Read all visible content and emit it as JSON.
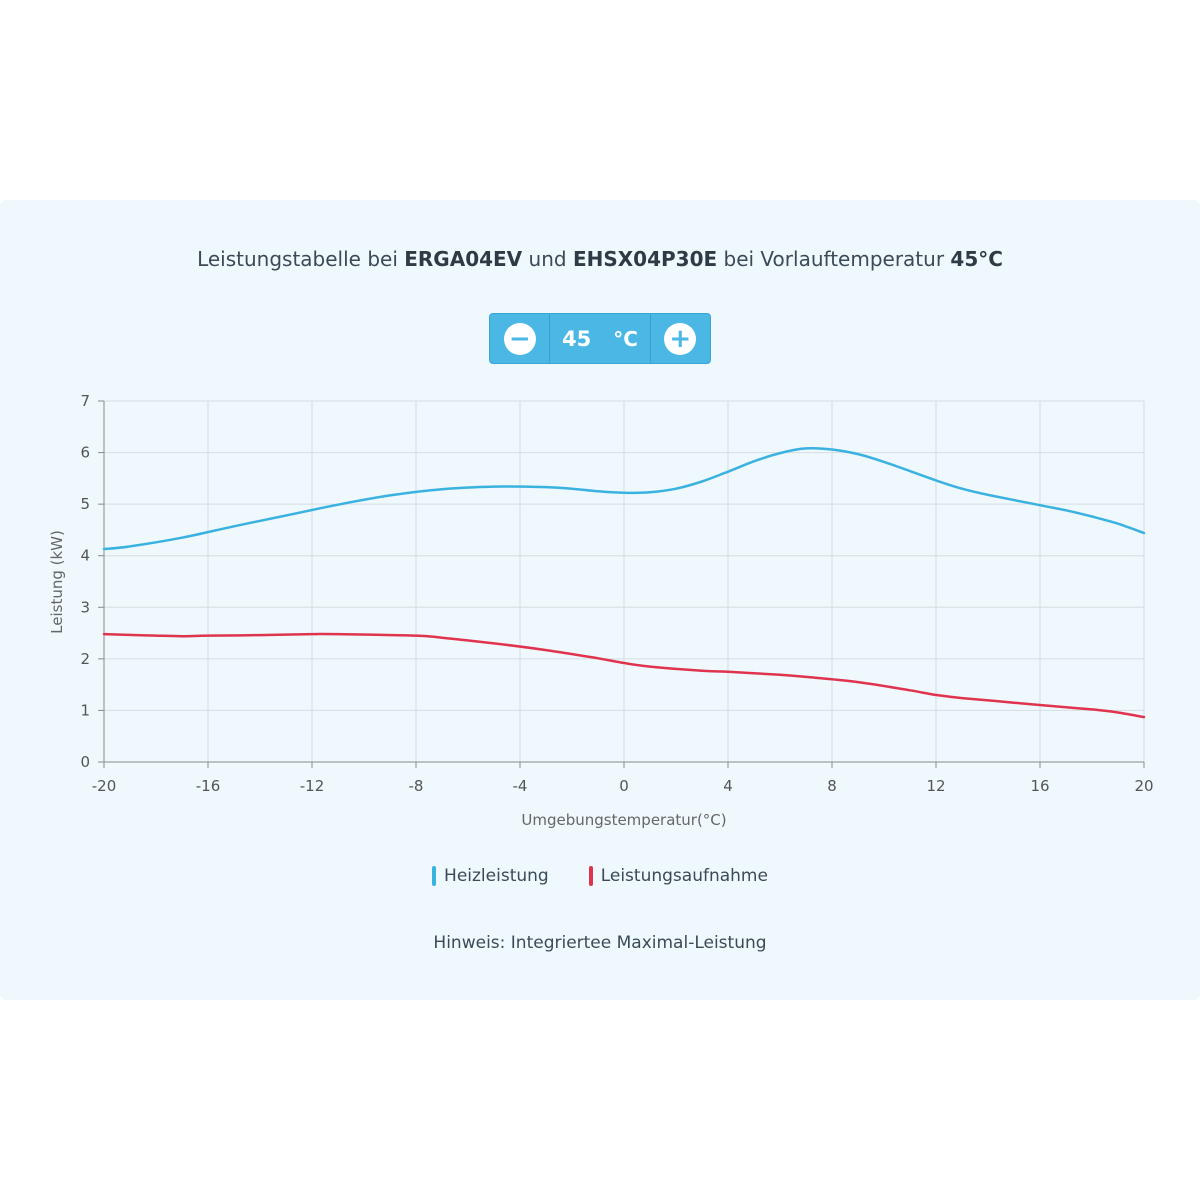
{
  "title": {
    "prefix": "Leistungstabelle bei ",
    "model1": "ERGA04EV",
    "mid": " und ",
    "model2": "EHSX04P30E",
    "mid2": " bei Vorlauftemperatur ",
    "temp": "45°C"
  },
  "stepper": {
    "minus_icon": "minus-icon",
    "plus_icon": "plus-icon",
    "value": "45",
    "unit": "°C"
  },
  "chart_data": {
    "type": "line",
    "xlabel": "Umgebungstemperatur(°C)",
    "ylabel": "Leistung (kW)",
    "xlim": [
      -20,
      20
    ],
    "ylim": [
      0,
      7
    ],
    "xticks": [
      "-20",
      "-16",
      "-12",
      "-8",
      "-4",
      "0",
      "4",
      "8",
      "12",
      "16",
      "20"
    ],
    "yticks": [
      "0",
      "1",
      "2",
      "3",
      "4",
      "5",
      "6",
      "7"
    ],
    "grid": true,
    "legend_position": "bottom",
    "series": [
      {
        "name": "Heizleistung",
        "color": "#3ab2e0",
        "points": [
          [
            -20,
            4.13
          ],
          [
            -19,
            4.18
          ],
          [
            -17,
            4.35
          ],
          [
            -15,
            4.57
          ],
          [
            -13,
            4.78
          ],
          [
            -11,
            4.99
          ],
          [
            -9,
            5.17
          ],
          [
            -7,
            5.29
          ],
          [
            -5,
            5.34
          ],
          [
            -3,
            5.33
          ],
          [
            -2,
            5.3
          ],
          [
            -1,
            5.25
          ],
          [
            0,
            5.22
          ],
          [
            1,
            5.23
          ],
          [
            2,
            5.3
          ],
          [
            3,
            5.44
          ],
          [
            4,
            5.63
          ],
          [
            5,
            5.83
          ],
          [
            6,
            5.99
          ],
          [
            7,
            6.08
          ],
          [
            8,
            6.06
          ],
          [
            9,
            5.97
          ],
          [
            10,
            5.82
          ],
          [
            12,
            5.46
          ],
          [
            13,
            5.3
          ],
          [
            14,
            5.18
          ],
          [
            16,
            4.98
          ],
          [
            17,
            4.88
          ],
          [
            18,
            4.76
          ],
          [
            19,
            4.62
          ],
          [
            20,
            4.44
          ]
        ]
      },
      {
        "name": "Leistungsaufnahme",
        "color": "#e0344e",
        "points": [
          [
            -20,
            2.48
          ],
          [
            -18,
            2.45
          ],
          [
            -17,
            2.44
          ],
          [
            -16,
            2.45
          ],
          [
            -14,
            2.46
          ],
          [
            -12,
            2.48
          ],
          [
            -11,
            2.48
          ],
          [
            -8,
            2.45
          ],
          [
            -7,
            2.41
          ],
          [
            -5,
            2.3
          ],
          [
            -3,
            2.17
          ],
          [
            -1,
            2.01
          ],
          [
            0,
            1.92
          ],
          [
            1,
            1.85
          ],
          [
            3,
            1.77
          ],
          [
            4,
            1.75
          ],
          [
            6,
            1.69
          ],
          [
            7,
            1.65
          ],
          [
            9,
            1.55
          ],
          [
            11,
            1.39
          ],
          [
            12,
            1.3
          ],
          [
            13,
            1.24
          ],
          [
            15,
            1.15
          ],
          [
            17,
            1.06
          ],
          [
            18,
            1.02
          ],
          [
            19,
            0.96
          ],
          [
            20,
            0.87
          ]
        ]
      }
    ]
  },
  "legend": {
    "items": [
      {
        "label": "Heizleistung",
        "color": "#3ab2e0"
      },
      {
        "label": "Leistungsaufnahme",
        "color": "#e0344e"
      }
    ]
  },
  "note": "Hinweis: Integriertee Maximal-Leistung"
}
